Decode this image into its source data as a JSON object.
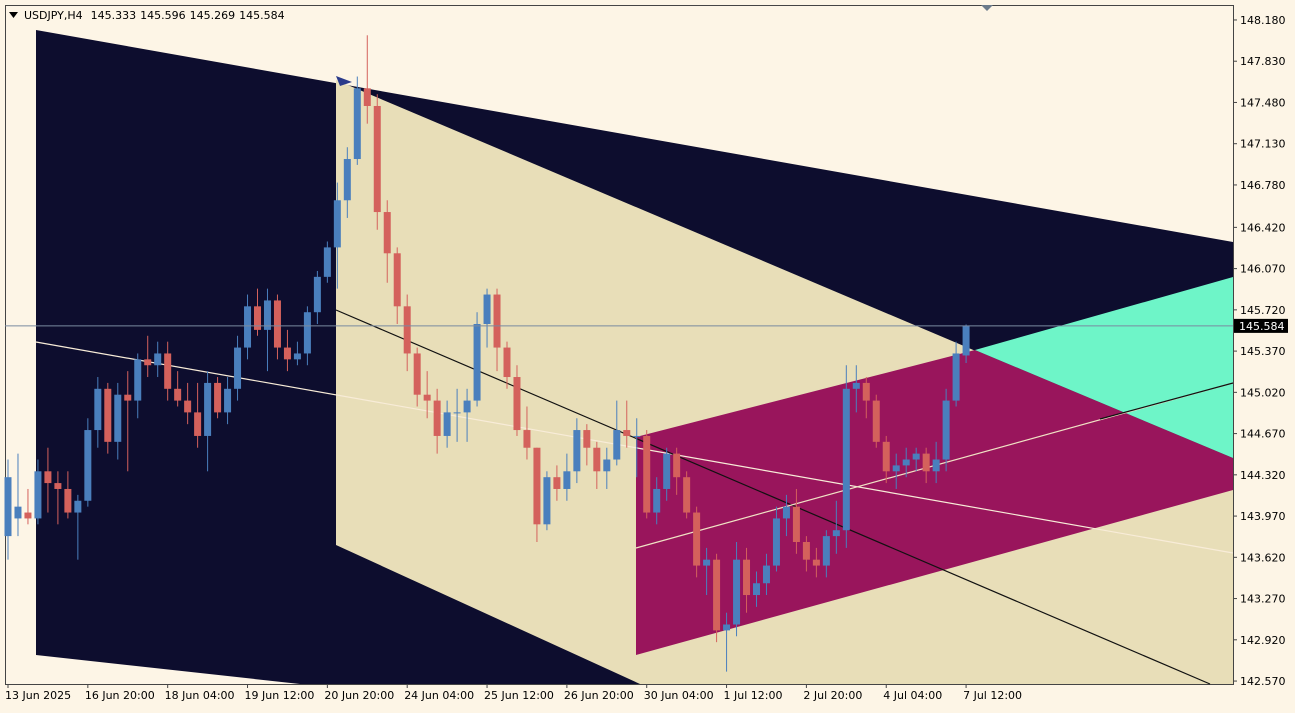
{
  "chart_data": {
    "type": "candlestick",
    "symbol": "USDJPY,H4",
    "x": [
      "13 Jun 2025",
      null,
      null,
      null,
      null,
      null,
      null,
      null,
      "16 Jun 20:00",
      null,
      null,
      null,
      null,
      null,
      null,
      null,
      "18 Jun 04:00",
      null,
      null,
      null,
      null,
      null,
      null,
      null,
      "19 Jun 12:00",
      null,
      null,
      null,
      null,
      null,
      null,
      null,
      "20 Jun 20:00",
      null,
      null,
      null,
      null,
      null,
      null,
      null,
      "24 Jun 04:00",
      null,
      null,
      null,
      null,
      null,
      null,
      null,
      "25 Jun 12:00",
      null,
      null,
      null,
      null,
      null,
      null,
      null,
      "26 Jun 20:00",
      null,
      null,
      null,
      null,
      null,
      null,
      null,
      "30 Jun 04:00",
      null,
      null,
      null,
      null,
      null,
      null,
      null,
      "1 Jul 12:00",
      null,
      null,
      null,
      null,
      null,
      null,
      null,
      "2 Jul 20:00",
      null,
      null,
      null,
      null,
      null,
      null,
      null,
      "4 Jul 04:00",
      null,
      null,
      null,
      null,
      null,
      null,
      null,
      "7 Jul 12:00"
    ],
    "open": [
      143.8,
      143.95,
      144.0,
      143.95,
      144.35,
      144.25,
      144.2,
      144.0,
      144.1,
      144.7,
      145.05,
      144.6,
      145.0,
      144.95,
      145.3,
      145.25,
      145.35,
      145.05,
      144.95,
      144.85,
      144.65,
      145.1,
      144.85,
      145.05,
      145.4,
      145.75,
      145.55,
      145.8,
      145.4,
      145.3,
      145.35,
      145.7,
      146.0,
      146.25,
      146.65,
      147.0,
      147.6,
      147.45,
      146.55,
      146.2,
      145.75,
      145.35,
      145.0,
      144.95,
      144.65,
      144.85,
      144.85,
      144.95,
      145.6,
      145.85,
      145.4,
      145.15,
      144.7,
      144.55,
      143.9,
      144.3,
      144.2,
      144.35,
      144.7,
      144.55,
      144.35,
      144.45,
      144.7,
      144.65,
      144.65,
      144.0,
      144.2,
      144.5,
      144.3,
      144.0,
      143.55,
      143.6,
      143.0,
      143.05,
      143.6,
      143.3,
      143.4,
      143.55,
      143.95,
      144.05,
      143.75,
      143.6,
      143.55,
      143.8,
      143.85,
      145.05,
      145.1,
      144.95,
      144.6,
      144.35,
      144.4,
      144.45,
      144.5,
      144.35,
      144.45,
      144.95,
      145.333
    ],
    "high": [
      144.45,
      144.5,
      144.2,
      144.45,
      144.55,
      144.35,
      144.35,
      144.15,
      144.8,
      145.15,
      145.1,
      145.1,
      145.2,
      145.35,
      145.5,
      145.45,
      145.45,
      145.2,
      145.1,
      145.1,
      145.2,
      145.15,
      145.15,
      145.5,
      145.85,
      145.9,
      145.9,
      145.85,
      145.55,
      145.45,
      145.75,
      146.05,
      146.3,
      146.8,
      147.1,
      147.7,
      148.05,
      147.55,
      146.65,
      146.25,
      145.85,
      145.4,
      145.2,
      145.05,
      144.95,
      145.05,
      145.05,
      145.7,
      145.9,
      145.9,
      145.45,
      145.25,
      144.9,
      144.55,
      144.35,
      144.4,
      144.5,
      144.8,
      144.75,
      144.6,
      144.55,
      144.95,
      144.95,
      144.8,
      144.7,
      144.3,
      144.55,
      144.55,
      144.35,
      144.05,
      143.7,
      143.65,
      143.15,
      143.75,
      143.7,
      143.5,
      143.65,
      144.05,
      144.15,
      144.2,
      143.8,
      143.7,
      143.85,
      144.1,
      145.25,
      145.25,
      145.15,
      145.0,
      144.65,
      144.5,
      144.55,
      144.55,
      144.55,
      144.6,
      145.05,
      145.45,
      145.596
    ],
    "low": [
      143.6,
      143.8,
      143.9,
      143.9,
      144.0,
      143.9,
      143.95,
      143.6,
      144.05,
      144.55,
      144.5,
      144.45,
      144.35,
      144.8,
      145.15,
      145.15,
      144.95,
      144.9,
      144.75,
      144.55,
      144.35,
      144.8,
      144.75,
      144.95,
      145.3,
      145.5,
      145.2,
      145.3,
      145.2,
      145.25,
      145.25,
      145.6,
      145.95,
      145.9,
      146.5,
      146.95,
      147.3,
      146.4,
      145.95,
      145.6,
      145.2,
      144.9,
      144.8,
      144.5,
      144.55,
      144.6,
      144.6,
      144.9,
      145.4,
      145.2,
      145.05,
      144.65,
      144.45,
      143.75,
      143.85,
      144.1,
      144.1,
      144.25,
      144.4,
      144.2,
      144.2,
      144.4,
      144.55,
      144.3,
      143.95,
      143.9,
      144.1,
      144.15,
      143.95,
      143.45,
      143.3,
      142.9,
      142.65,
      142.95,
      143.15,
      143.2,
      143.3,
      143.5,
      143.8,
      143.65,
      143.5,
      143.45,
      143.45,
      143.65,
      143.7,
      144.85,
      144.8,
      144.55,
      144.25,
      144.2,
      144.3,
      144.35,
      144.25,
      144.25,
      144.35,
      144.9,
      145.269
    ],
    "close": [
      144.3,
      144.05,
      143.95,
      144.35,
      144.25,
      144.2,
      144.0,
      144.1,
      144.7,
      145.05,
      144.6,
      145.0,
      144.95,
      145.3,
      145.25,
      145.35,
      145.05,
      144.95,
      144.85,
      144.65,
      145.1,
      144.85,
      145.05,
      145.4,
      145.75,
      145.55,
      145.8,
      145.4,
      145.3,
      145.35,
      145.7,
      146.0,
      146.25,
      146.65,
      147.0,
      147.6,
      147.45,
      146.55,
      146.2,
      145.75,
      145.35,
      145.0,
      144.95,
      144.65,
      144.85,
      144.85,
      144.95,
      145.6,
      145.85,
      145.4,
      145.15,
      144.7,
      144.55,
      143.9,
      144.3,
      144.2,
      144.35,
      144.7,
      144.55,
      144.35,
      144.45,
      144.7,
      144.65,
      144.65,
      144.0,
      144.2,
      144.5,
      144.3,
      144.0,
      143.55,
      143.6,
      143.0,
      143.05,
      143.6,
      143.3,
      143.4,
      143.55,
      143.95,
      144.05,
      143.75,
      143.6,
      143.55,
      143.8,
      143.85,
      145.05,
      145.1,
      144.95,
      144.6,
      144.35,
      144.4,
      144.45,
      144.5,
      144.35,
      144.45,
      144.95,
      145.35,
      145.584
    ],
    "up_color": "#4a7fbd",
    "down_color": "#d4615c",
    "ylim": [
      142.545,
      148.307
    ],
    "yticks": [
      {
        "value": 148.18,
        "label": "148.180"
      },
      {
        "value": 147.83,
        "label": "147.830"
      },
      {
        "value": 147.48,
        "label": "147.480"
      },
      {
        "value": 147.13,
        "label": "147.130"
      },
      {
        "value": 146.78,
        "label": "146.780"
      },
      {
        "value": 146.42,
        "label": "146.420"
      },
      {
        "value": 146.07,
        "label": "146.070"
      },
      {
        "value": 145.72,
        "label": "145.720"
      },
      {
        "value": 145.37,
        "label": "145.370"
      },
      {
        "value": 145.02,
        "label": "145.020"
      },
      {
        "value": 144.67,
        "label": "144.670"
      },
      {
        "value": 144.32,
        "label": "144.320"
      },
      {
        "value": 143.97,
        "label": "143.970"
      },
      {
        "value": 143.62,
        "label": "143.620"
      },
      {
        "value": 143.27,
        "label": "143.270"
      },
      {
        "value": 142.92,
        "label": "142.920"
      },
      {
        "value": 142.57,
        "label": "142.570"
      }
    ]
  }
}
